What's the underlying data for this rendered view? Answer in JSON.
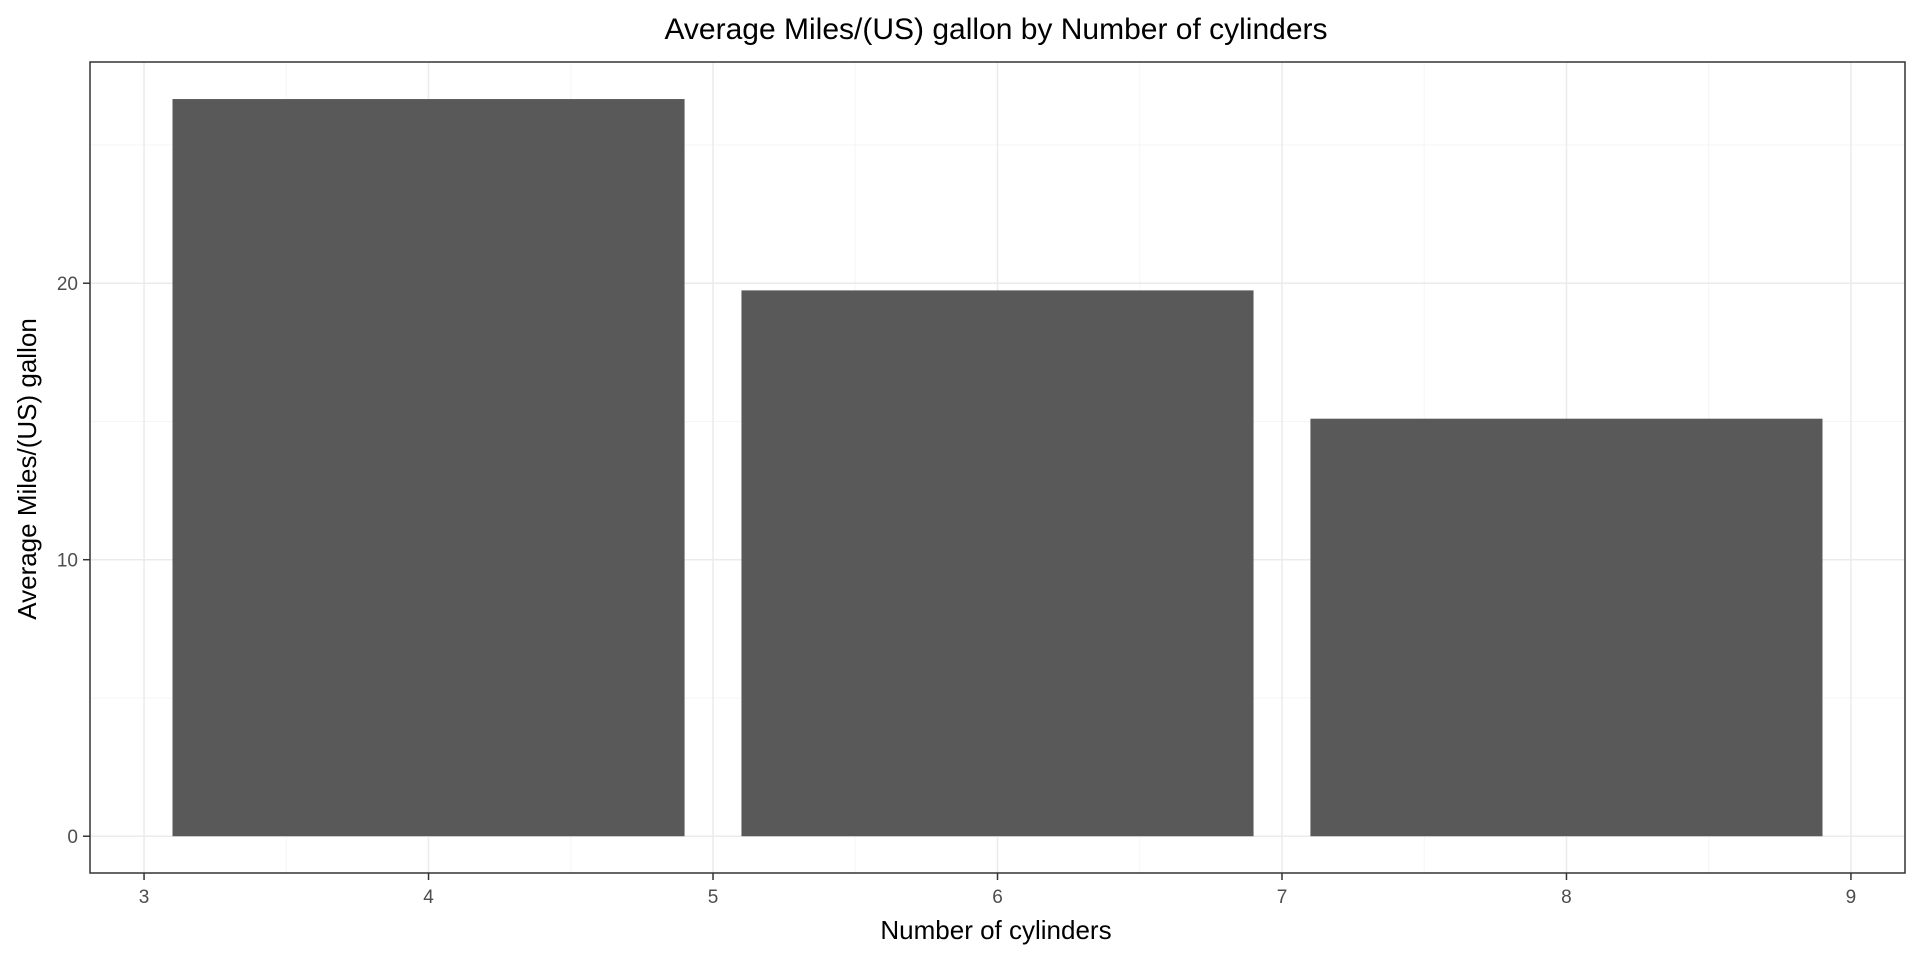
{
  "chart_data": {
    "type": "bar",
    "title": "Average Miles/(US) gallon by Number of cylinders",
    "xlabel": "Number of cylinders",
    "ylabel": "Average Miles/(US) gallon",
    "x": [
      4,
      6,
      8
    ],
    "values": [
      26.66,
      19.74,
      15.1
    ],
    "bar_width": 1.8,
    "xlim": [
      2.81,
      9.19
    ],
    "ylim": [
      -1.33,
      28.0
    ],
    "x_ticks": [
      3,
      4,
      5,
      6,
      7,
      8,
      9
    ],
    "y_ticks": [
      0,
      10,
      20
    ],
    "grid": true,
    "legend": "none",
    "colors": {
      "bar": "#595959",
      "panel_border": "#333333",
      "grid_major": "#ebebeb",
      "grid_minor": "#f5f5f5",
      "tick_text": "#4d4d4d",
      "text": "#000000",
      "background": "#ffffff"
    }
  }
}
